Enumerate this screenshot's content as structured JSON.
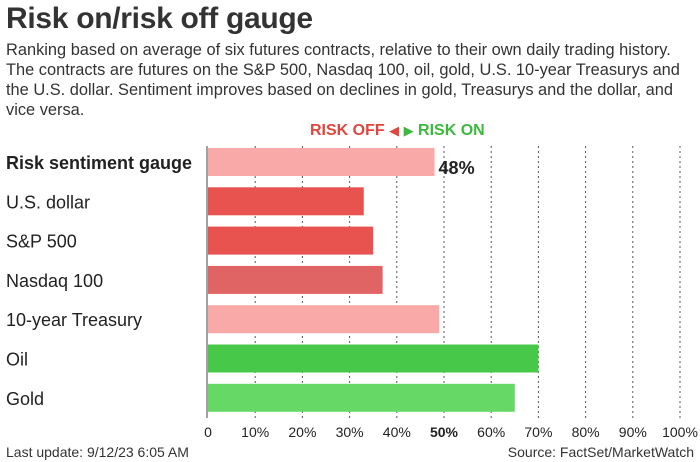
{
  "title": "Risk on/risk off gauge",
  "subtitle": "Ranking based on average of six futures contracts, relative to their own daily trading history. The contracts are futures on the S&P 500, Nasdaq 100, oil, gold, U.S. 10-year Treasurys and the U.S. dollar. Sentiment improves based on declines in gold, Treasurys and the dollar, and vice versa.",
  "legend": {
    "risk_off": "RISK OFF",
    "risk_on": "RISK ON"
  },
  "footer": {
    "last_update": "Last update: 9/12/23 6:05 AM",
    "source": "Source: FactSet/MarketWatch"
  },
  "chart_data": {
    "type": "bar",
    "orientation": "horizontal",
    "categories": [
      "Risk sentiment gauge",
      "U.S. dollar",
      "S&P 500",
      "Nasdaq 100",
      "10-year Treasury",
      "Oil",
      "Gold"
    ],
    "values": [
      48,
      33,
      35,
      37,
      49,
      70,
      65
    ],
    "data_labels": [
      "48%",
      "",
      "",
      "",
      "",
      "",
      ""
    ],
    "colors": [
      "#f9aaa8",
      "#e8524f",
      "#e8524f",
      "#e06464",
      "#f9aaa8",
      "#48c848",
      "#66d866"
    ],
    "xlim": [
      0,
      100
    ],
    "ticks": [
      "0",
      "10%",
      "20%",
      "30%",
      "40%",
      "50%",
      "60%",
      "70%",
      "80%",
      "90%",
      "100%"
    ],
    "highlight_tick": "50%",
    "grid": "vertical-dotted"
  }
}
